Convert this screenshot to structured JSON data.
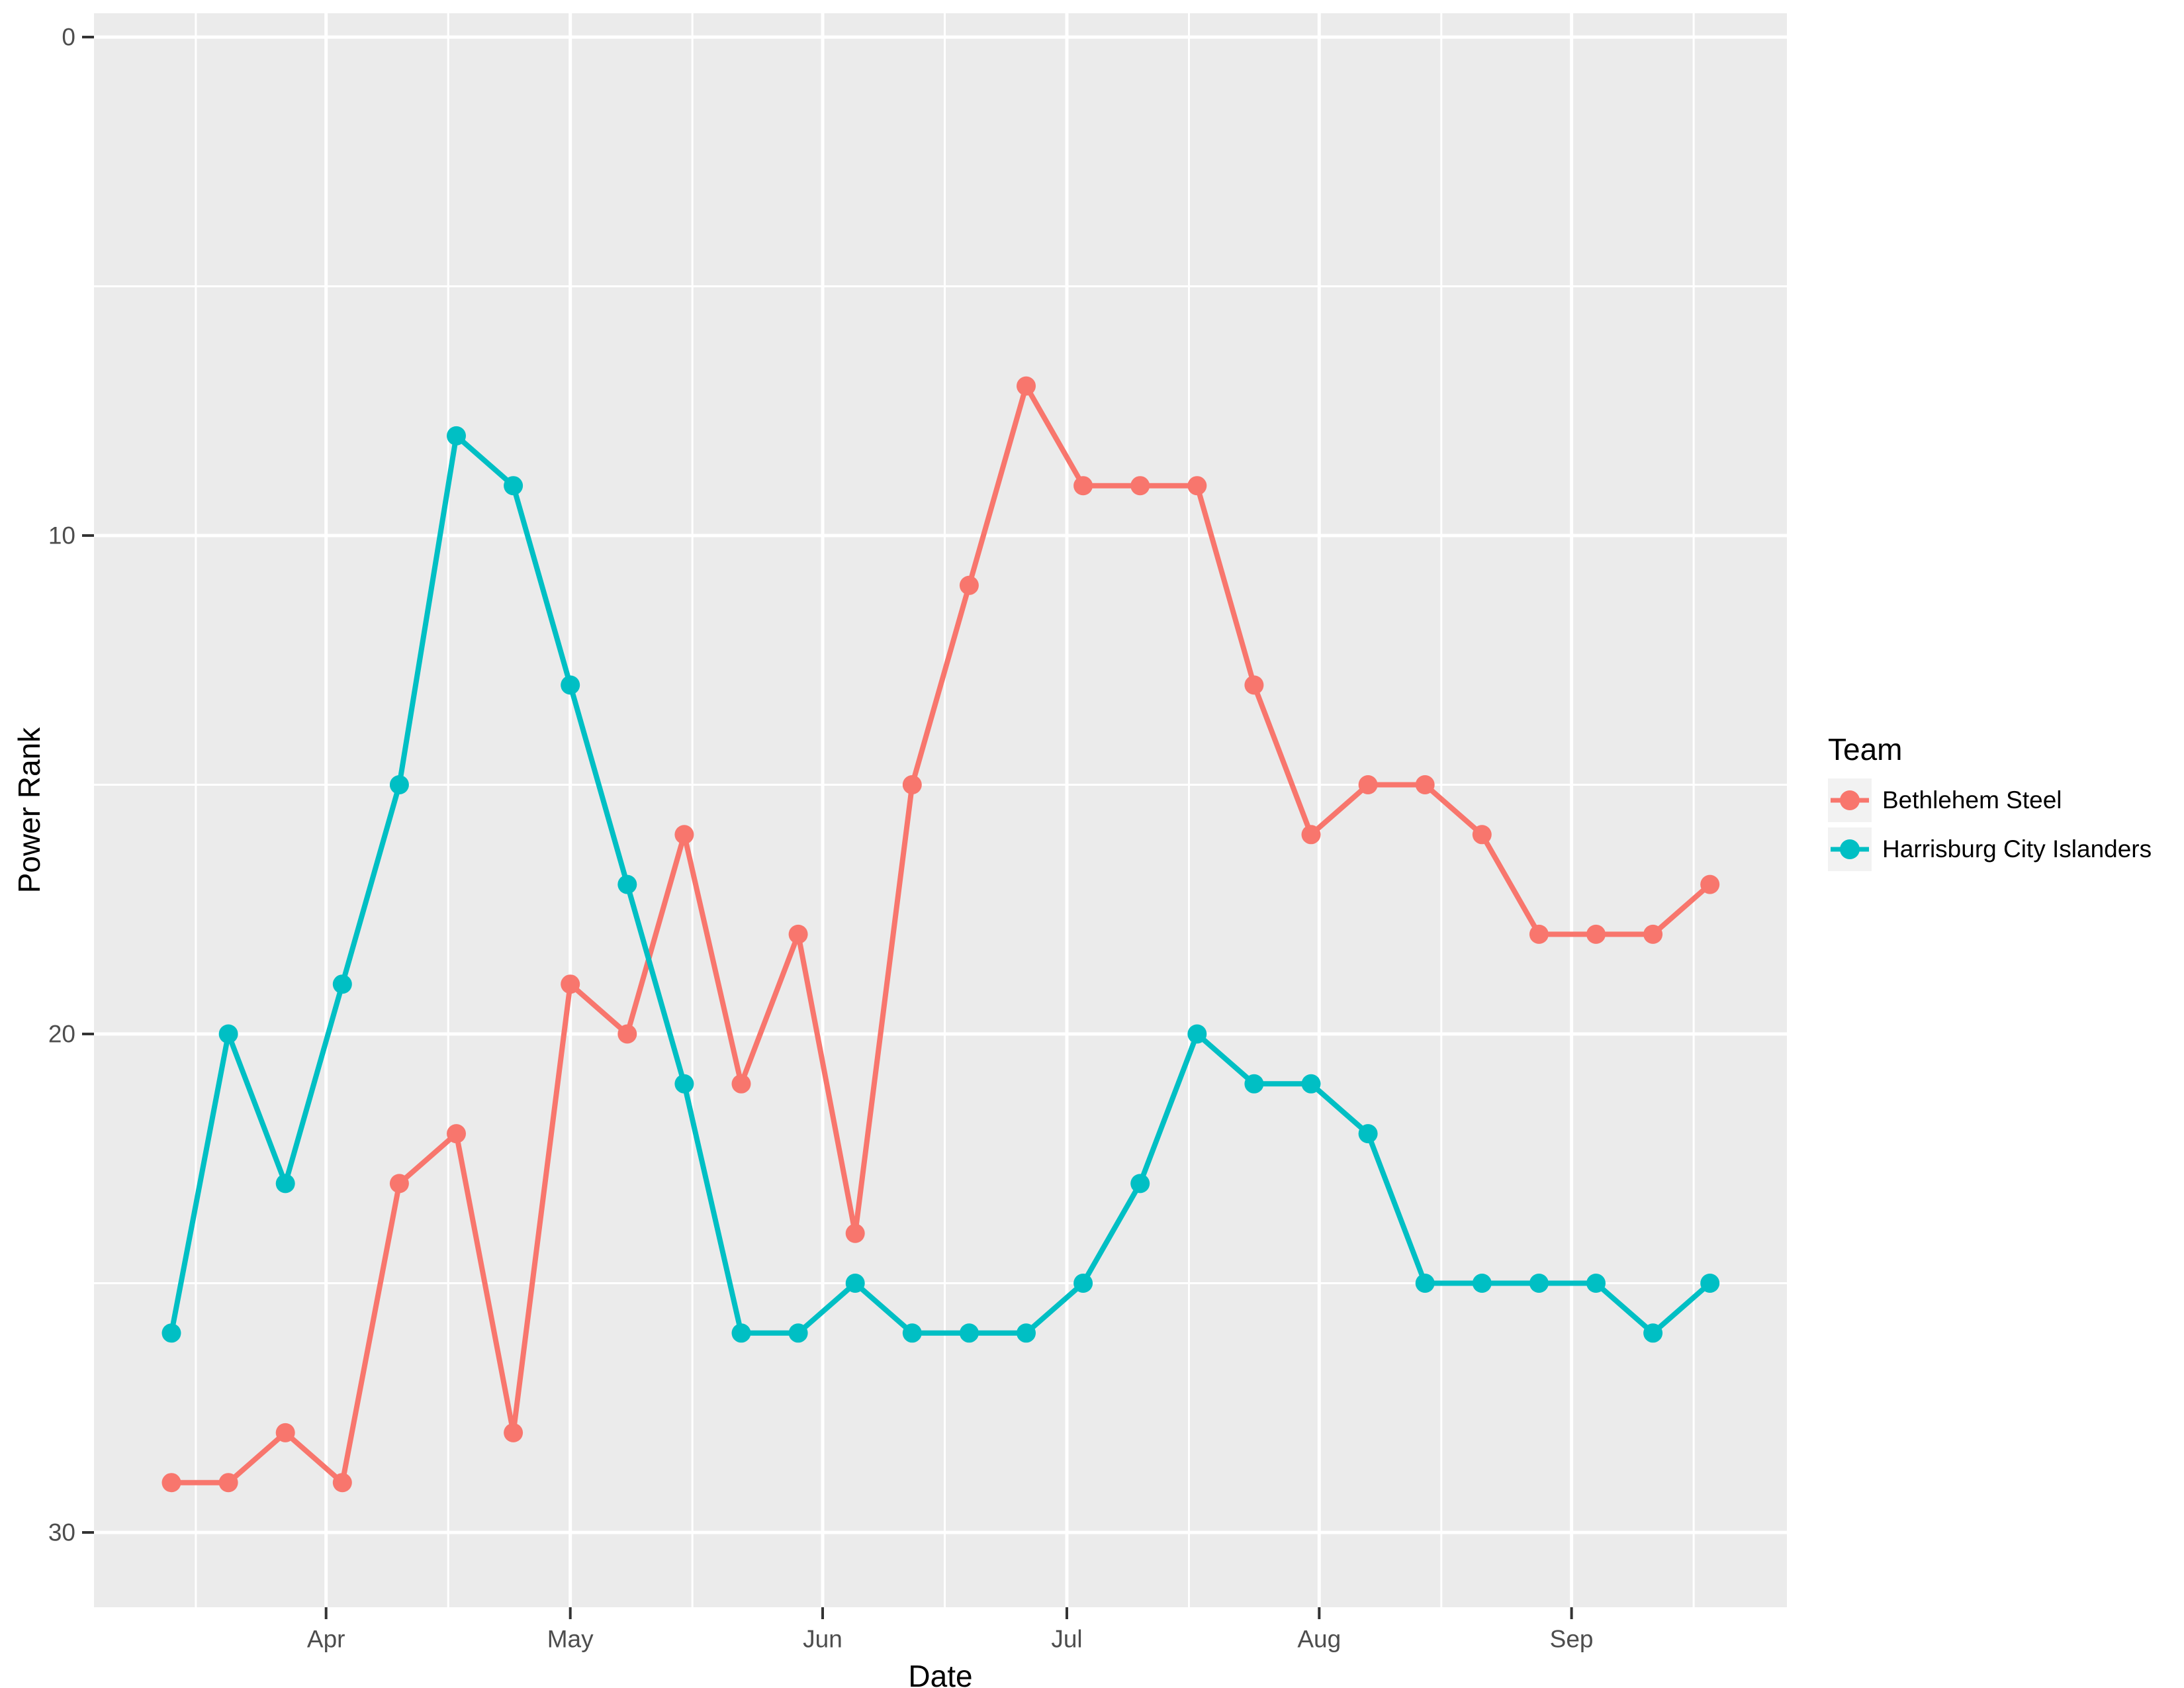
{
  "figure": {
    "background": "#FFFFFF",
    "panel_background": "#EBEBEB",
    "gridline_color": "#FFFFFF",
    "tick_color": "#333333",
    "axis_text_color": "#4D4D4D",
    "legend_key_background": "#F2F2F2"
  },
  "chart_data": {
    "type": "line",
    "title": "",
    "xlabel": "Date",
    "ylabel": "Power Rank",
    "y_axis_reversed": true,
    "y_tick_labels": [
      "0",
      "10",
      "20",
      "30"
    ],
    "y_major_breaks": [
      0,
      10,
      20,
      30
    ],
    "y_minor_breaks": [
      5,
      15,
      25
    ],
    "x_tick_labels": [
      "Apr",
      "May",
      "Jun",
      "Jul",
      "Aug",
      "Sep"
    ],
    "grid": "white major and minor gridlines on gray panel",
    "legend_position": "right",
    "legend_title": "Team",
    "x": [
      "Mar 13",
      "Mar 20",
      "Mar 27",
      "Apr 3",
      "Apr 10",
      "Apr 17",
      "Apr 24",
      "May 1",
      "May 8",
      "May 15",
      "May 22",
      "May 29",
      "Jun 5",
      "Jun 12",
      "Jun 19",
      "Jun 26",
      "Jul 3",
      "Jul 10",
      "Jul 17",
      "Jul 24",
      "Jul 31",
      "Aug 7",
      "Aug 14",
      "Aug 21",
      "Aug 28",
      "Sep 4",
      "Sep 11",
      "Sep 18"
    ],
    "series": [
      {
        "name": "Bethlehem Steel",
        "color": "#F8766D",
        "values": [
          29,
          29,
          28,
          29,
          23,
          22,
          28,
          19,
          20,
          16,
          21,
          18,
          24,
          15,
          11,
          7,
          9,
          9,
          9,
          13,
          16,
          15,
          15,
          16,
          18,
          18,
          18,
          17
        ]
      },
      {
        "name": "Harrisburg City Islanders",
        "color": "#00BFC4",
        "values": [
          26,
          20,
          23,
          19,
          15,
          8,
          9,
          13,
          17,
          21,
          26,
          26,
          25,
          26,
          26,
          26,
          25,
          23,
          20,
          21,
          21,
          22,
          25,
          25,
          25,
          25,
          26,
          25
        ]
      }
    ]
  }
}
